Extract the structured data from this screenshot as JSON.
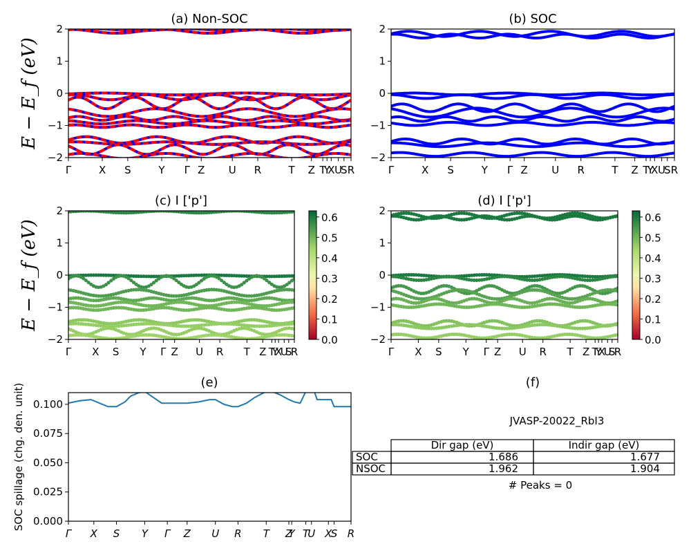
{
  "chart_data": [
    {
      "id": "a",
      "type": "line",
      "title": "(a) Non-SOC",
      "ylabel": "E − E_f (eV)",
      "ylim": [
        -2,
        2
      ],
      "yticks": [
        "2",
        "1",
        "0",
        "−1",
        "−2"
      ],
      "xticks": [
        "Γ",
        "X",
        "S",
        "Y",
        "Γ",
        "Z",
        "U",
        "R",
        "T",
        "Z",
        "T",
        "Y",
        "X",
        "U",
        "S",
        "R"
      ],
      "x": [
        0,
        0.12,
        0.21,
        0.33,
        0.42,
        0.47,
        0.58,
        0.67,
        0.79,
        0.86,
        0.9,
        0.915,
        0.93,
        0.955,
        0.975,
        1
      ],
      "colors": [
        "#ff0000",
        "#0000ff"
      ],
      "series": [
        {
          "type": "band",
          "base": 1.98,
          "amp": 0.03,
          "per": 0.33,
          "ph": 0
        },
        {
          "type": "band",
          "base": 1.93,
          "amp": 0.06,
          "per": 0.33,
          "ph": 1.5
        },
        {
          "type": "band",
          "base": -0.02,
          "amp": 0.03,
          "per": 0.5,
          "ph": 0
        },
        {
          "type": "band",
          "base": -0.12,
          "amp": 0.08,
          "per": 0.25,
          "ph": 1
        },
        {
          "type": "band",
          "base": -0.3,
          "amp": 0.18,
          "per": 0.2,
          "ph": 0.5
        },
        {
          "type": "band",
          "base": -0.6,
          "amp": 0.12,
          "per": 0.33,
          "ph": 2
        },
        {
          "type": "band",
          "base": -0.78,
          "amp": 0.06,
          "per": 0.17,
          "ph": 0.3
        },
        {
          "type": "band",
          "base": -0.9,
          "amp": 0.05,
          "per": 0.25,
          "ph": 1.8
        },
        {
          "type": "band",
          "base": -1.02,
          "amp": 0.04,
          "per": 0.2,
          "ph": 0.9
        },
        {
          "type": "band",
          "base": -1.45,
          "amp": 0.1,
          "per": 0.25,
          "ph": 0
        },
        {
          "type": "band",
          "base": -1.55,
          "amp": 0.04,
          "per": 0.33,
          "ph": 1.1
        },
        {
          "type": "band",
          "base": -1.75,
          "amp": 0.15,
          "per": 0.2,
          "ph": 2.3
        },
        {
          "type": "band",
          "base": -1.95,
          "amp": 0.08,
          "per": 0.3,
          "ph": 0.6
        }
      ]
    },
    {
      "id": "b",
      "type": "line",
      "title": "(b) SOC",
      "ylim": [
        -2,
        2
      ],
      "yticks": [
        "2",
        "1",
        "0",
        "−1",
        "−2"
      ],
      "xticks": [
        "Γ",
        "X",
        "S",
        "Y",
        "Γ",
        "Z",
        "U",
        "R",
        "T",
        "Z",
        "T",
        "Y",
        "X",
        "U",
        "S",
        "R"
      ],
      "x": [
        0,
        0.12,
        0.21,
        0.33,
        0.42,
        0.47,
        0.58,
        0.67,
        0.79,
        0.86,
        0.9,
        0.915,
        0.93,
        0.955,
        0.975,
        1
      ],
      "colors": [
        "#0000ff"
      ],
      "series": [
        {
          "type": "band",
          "base": 1.85,
          "amp": 0.08,
          "per": 0.25,
          "ph": 0
        },
        {
          "type": "band",
          "base": 1.78,
          "amp": 0.06,
          "per": 0.2,
          "ph": 1.2
        },
        {
          "type": "band",
          "base": -0.02,
          "amp": 0.03,
          "per": 0.33,
          "ph": 0
        },
        {
          "type": "band",
          "base": -0.1,
          "amp": 0.06,
          "per": 0.25,
          "ph": 1.6
        },
        {
          "type": "band",
          "base": -0.45,
          "amp": 0.12,
          "per": 0.2,
          "ph": 0.4
        },
        {
          "type": "band",
          "base": -0.6,
          "amp": 0.14,
          "per": 0.33,
          "ph": 2.1
        },
        {
          "type": "band",
          "base": -0.8,
          "amp": 0.07,
          "per": 0.17,
          "ph": 0.7
        },
        {
          "type": "band",
          "base": -0.95,
          "amp": 0.05,
          "per": 0.25,
          "ph": 2.6
        },
        {
          "type": "band",
          "base": -1.5,
          "amp": 0.08,
          "per": 0.2,
          "ph": 0
        },
        {
          "type": "band",
          "base": -1.6,
          "amp": 0.06,
          "per": 0.33,
          "ph": 1.4
        },
        {
          "type": "band",
          "base": -1.9,
          "amp": 0.06,
          "per": 0.25,
          "ph": 0.8
        }
      ]
    },
    {
      "id": "c",
      "type": "scatter",
      "title": "(c)  I ['p']",
      "ylabel": "E − E_f (eV)",
      "ylim": [
        -2,
        2
      ],
      "yticks": [
        "2",
        "1",
        "0",
        "−1",
        "−2"
      ],
      "xticks": [
        "Γ",
        "X",
        "S",
        "Y",
        "Γ",
        "Z",
        "U",
        "R",
        "T",
        "Z",
        "T",
        "Y",
        "X",
        "U",
        "S",
        "R"
      ],
      "x": [
        0,
        0.12,
        0.21,
        0.33,
        0.42,
        0.47,
        0.58,
        0.67,
        0.79,
        0.86,
        0.9,
        0.915,
        0.93,
        0.955,
        0.975,
        1
      ],
      "colorbar": {
        "min": 0.0,
        "max": 0.63,
        "ticks": [
          "0.6",
          "0.5",
          "0.4",
          "0.3",
          "0.2",
          "0.1",
          "0.0"
        ]
      },
      "series": [
        {
          "type": "band",
          "base": 1.97,
          "amp": 0.03,
          "per": 0.33,
          "ph": 0,
          "v": 0.58
        },
        {
          "type": "band",
          "base": -0.02,
          "amp": 0.02,
          "per": 0.5,
          "ph": 0,
          "v": 0.6
        },
        {
          "type": "band",
          "base": -0.2,
          "amp": 0.18,
          "per": 0.2,
          "ph": 0.5,
          "v": 0.56
        },
        {
          "type": "band",
          "base": -0.55,
          "amp": 0.1,
          "per": 0.33,
          "ph": 2,
          "v": 0.54
        },
        {
          "type": "band",
          "base": -0.75,
          "amp": 0.04,
          "per": 0.17,
          "ph": 0.3,
          "v": 0.52
        },
        {
          "type": "band",
          "base": -0.9,
          "amp": 0.06,
          "per": 0.25,
          "ph": 1.8,
          "v": 0.5
        },
        {
          "type": "band",
          "base": -1.05,
          "amp": 0.04,
          "per": 0.2,
          "ph": 0.9,
          "v": 0.5
        },
        {
          "type": "band",
          "base": -1.45,
          "amp": 0.06,
          "per": 0.25,
          "ph": 0,
          "v": 0.47
        },
        {
          "type": "band",
          "base": -1.55,
          "amp": 0.04,
          "per": 0.33,
          "ph": 1.1,
          "v": 0.46
        },
        {
          "type": "band",
          "base": -1.75,
          "amp": 0.1,
          "per": 0.2,
          "ph": 2.3,
          "v": 0.46
        },
        {
          "type": "band",
          "base": -1.92,
          "amp": 0.06,
          "per": 0.3,
          "ph": 0.6,
          "v": 0.45
        }
      ]
    },
    {
      "id": "d",
      "type": "scatter",
      "title": "(d) I ['p']",
      "ylim": [
        -2,
        2
      ],
      "yticks": [
        "2",
        "1",
        "0",
        "−1",
        "−2"
      ],
      "xticks": [
        "Γ",
        "X",
        "S",
        "Y",
        "Γ",
        "Z",
        "U",
        "R",
        "T",
        "Z",
        "T",
        "Y",
        "X",
        "U",
        "S",
        "R"
      ],
      "x": [
        0,
        0.12,
        0.21,
        0.33,
        0.42,
        0.47,
        0.58,
        0.67,
        0.79,
        0.86,
        0.9,
        0.915,
        0.93,
        0.955,
        0.975,
        1
      ],
      "colorbar": {
        "min": 0.0,
        "max": 0.63,
        "ticks": [
          "0.6",
          "0.5",
          "0.4",
          "0.3",
          "0.2",
          "0.1",
          "0.0"
        ]
      },
      "series": [
        {
          "type": "band",
          "base": 1.85,
          "amp": 0.08,
          "per": 0.25,
          "ph": 0,
          "v": 0.6
        },
        {
          "type": "band",
          "base": 1.78,
          "amp": 0.06,
          "per": 0.2,
          "ph": 1.2,
          "v": 0.6
        },
        {
          "type": "band",
          "base": -0.02,
          "amp": 0.03,
          "per": 0.33,
          "ph": 0,
          "v": 0.6
        },
        {
          "type": "band",
          "base": -0.1,
          "amp": 0.06,
          "per": 0.25,
          "ph": 1.6,
          "v": 0.58
        },
        {
          "type": "band",
          "base": -0.45,
          "amp": 0.12,
          "per": 0.2,
          "ph": 0.4,
          "v": 0.55
        },
        {
          "type": "band",
          "base": -0.6,
          "amp": 0.14,
          "per": 0.33,
          "ph": 2.1,
          "v": 0.53
        },
        {
          "type": "band",
          "base": -0.8,
          "amp": 0.07,
          "per": 0.17,
          "ph": 0.7,
          "v": 0.51
        },
        {
          "type": "band",
          "base": -0.95,
          "amp": 0.05,
          "per": 0.25,
          "ph": 2.6,
          "v": 0.5
        },
        {
          "type": "band",
          "base": -1.5,
          "amp": 0.08,
          "per": 0.2,
          "ph": 0,
          "v": 0.48
        },
        {
          "type": "band",
          "base": -1.6,
          "amp": 0.06,
          "per": 0.33,
          "ph": 1.4,
          "v": 0.47
        },
        {
          "type": "band",
          "base": -1.9,
          "amp": 0.06,
          "per": 0.25,
          "ph": 0.8,
          "v": 0.46
        }
      ]
    },
    {
      "id": "e",
      "type": "line",
      "title": "(e)",
      "ylabel": "SOC spillage (chg. den. unit)",
      "ylim": [
        0,
        0.11
      ],
      "yticks": [
        "0.100",
        "0.075",
        "0.050",
        "0.025",
        "0.000"
      ],
      "ytick_values": [
        0.1,
        0.075,
        0.05,
        0.025,
        0
      ],
      "xticks": [
        "Γ",
        "X",
        "S",
        "Y",
        "Γ",
        "Z",
        "U",
        "R",
        "T",
        "Z",
        "Y",
        "T",
        "U",
        "X",
        "S",
        "R"
      ],
      "x": [
        0,
        0.09,
        0.17,
        0.27,
        0.35,
        0.42,
        0.52,
        0.6,
        0.7,
        0.78,
        0.79,
        0.84,
        0.86,
        0.92,
        0.94,
        1
      ],
      "series": [
        {
          "color": "#1f77b4",
          "x": [
            0,
            0.04,
            0.08,
            0.11,
            0.14,
            0.17,
            0.2,
            0.22,
            0.25,
            0.27,
            0.3,
            0.33,
            0.35,
            0.38,
            0.42,
            0.46,
            0.5,
            0.52,
            0.55,
            0.58,
            0.6,
            0.63,
            0.66,
            0.7,
            0.72,
            0.75,
            0.78,
            0.8,
            0.82,
            0.84,
            0.85,
            0.87,
            0.88,
            0.92,
            0.93,
            0.94,
            0.95,
            1
          ],
          "values": [
            0.101,
            0.103,
            0.104,
            0.101,
            0.098,
            0.098,
            0.102,
            0.107,
            0.11,
            0.111,
            0.106,
            0.101,
            0.101,
            0.101,
            0.101,
            0.102,
            0.104,
            0.104,
            0.1,
            0.098,
            0.098,
            0.101,
            0.106,
            0.111,
            0.111,
            0.108,
            0.104,
            0.102,
            0.101,
            0.111,
            0.111,
            0.111,
            0.104,
            0.104,
            0.104,
            0.098,
            0.098,
            0.098
          ]
        }
      ]
    },
    {
      "id": "f",
      "type": "table",
      "title": "(f)",
      "subtitle": "JVASP-20022_RbI3",
      "columns": [
        "Dir gap (eV)",
        "Indir gap (eV)"
      ],
      "rows": [
        {
          "label": "SOC",
          "values": [
            "1.686",
            "1.677"
          ]
        },
        {
          "label": "NSOC",
          "values": [
            "1.962",
            "1.904"
          ]
        }
      ],
      "footer": "# Peaks = 0"
    }
  ]
}
